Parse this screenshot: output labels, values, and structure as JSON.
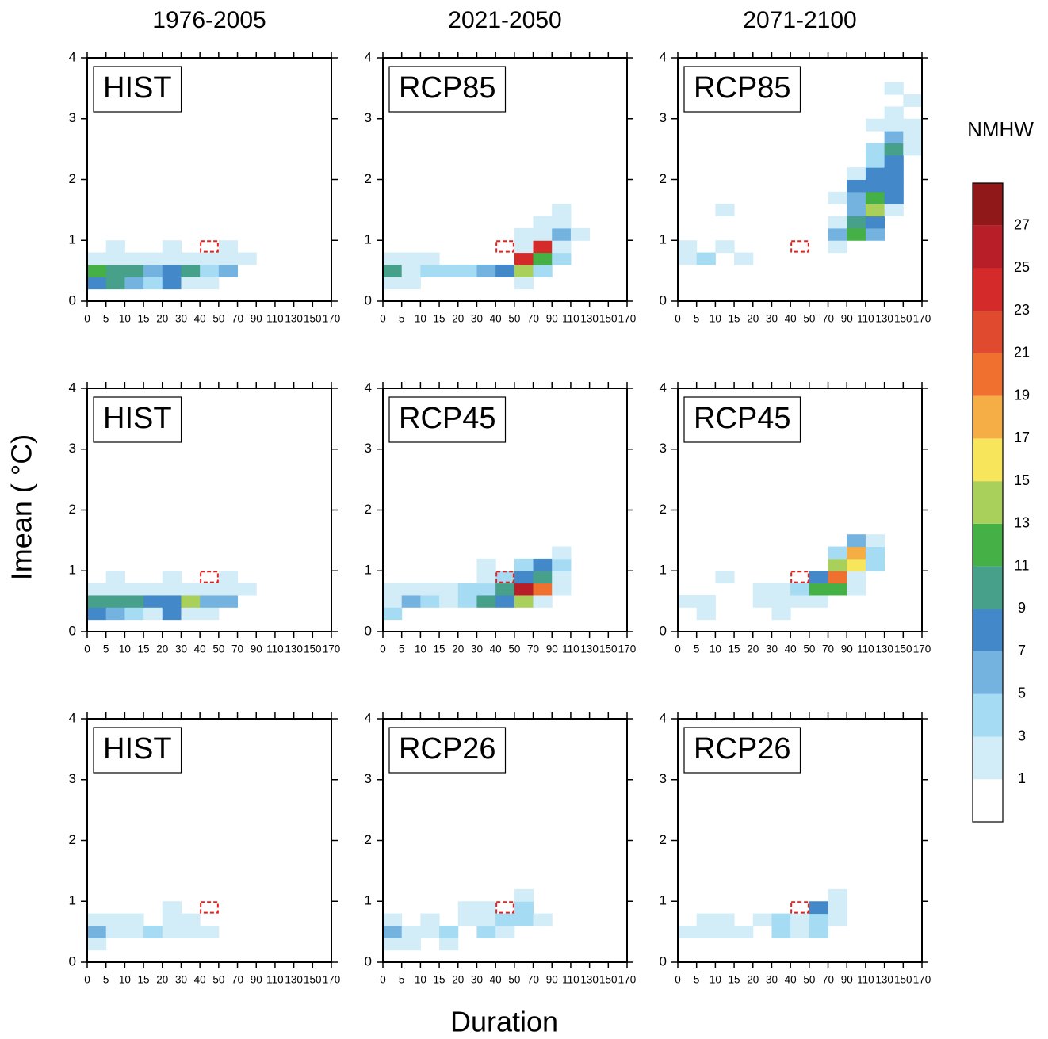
{
  "column_titles": [
    "1976-2005",
    "2021-2050",
    "2071-2100"
  ],
  "ylabel": "Imean ( °C)",
  "xlabel": "Duration",
  "colorbar": {
    "title": "NMHW",
    "levels": [
      1,
      3,
      5,
      7,
      9,
      11,
      13,
      15,
      17,
      19,
      21,
      23,
      25,
      27
    ],
    "colors": [
      "#ffffff",
      "#d2ecf8",
      "#a5dcf4",
      "#74b3e0",
      "#4388c8",
      "#46a08a",
      "#45b045",
      "#a9d05a",
      "#f7e55c",
      "#f5ad45",
      "#f07030",
      "#e04b30",
      "#d42a2a",
      "#b71e27",
      "#901818"
    ]
  },
  "chart_data": [
    {
      "type": "heatmap",
      "label": "HIST",
      "xticks": [
        0,
        5,
        10,
        15,
        20,
        30,
        40,
        50,
        70,
        90,
        110,
        130,
        150,
        170
      ],
      "ylim": [
        0,
        4
      ],
      "yticks": [
        0,
        1,
        2,
        3,
        4
      ],
      "ystep": 0.2,
      "marked_box": {
        "x": [
          40,
          50
        ],
        "y": [
          0.8,
          1
        ]
      },
      "cells": [
        [
          0,
          0.2,
          8
        ],
        [
          5,
          0.2,
          10
        ],
        [
          10,
          0.2,
          6
        ],
        [
          15,
          0.2,
          4
        ],
        [
          20,
          0.2,
          8
        ],
        [
          30,
          0.2,
          2
        ],
        [
          40,
          0.2,
          2
        ],
        [
          0,
          0.4,
          12
        ],
        [
          5,
          0.4,
          10
        ],
        [
          10,
          0.4,
          10
        ],
        [
          15,
          0.4,
          6
        ],
        [
          20,
          0.4,
          8
        ],
        [
          30,
          0.4,
          10
        ],
        [
          40,
          0.4,
          4
        ],
        [
          50,
          0.4,
          6
        ],
        [
          0,
          0.6,
          2
        ],
        [
          5,
          0.6,
          2
        ],
        [
          10,
          0.6,
          2
        ],
        [
          15,
          0.6,
          2
        ],
        [
          20,
          0.6,
          2
        ],
        [
          30,
          0.6,
          2
        ],
        [
          40,
          0.6,
          2
        ],
        [
          50,
          0.6,
          2
        ],
        [
          70,
          0.6,
          2
        ],
        [
          5,
          0.8,
          2
        ],
        [
          20,
          0.8,
          2
        ],
        [
          50,
          0.8,
          2
        ]
      ]
    },
    {
      "type": "heatmap",
      "label": "RCP85",
      "xticks": [
        0,
        5,
        10,
        15,
        20,
        30,
        40,
        50,
        70,
        90,
        110,
        130,
        150,
        170
      ],
      "ylim": [
        0,
        4
      ],
      "yticks": [
        0,
        1,
        2,
        3,
        4
      ],
      "ystep": 0.2,
      "marked_box": {
        "x": [
          40,
          50
        ],
        "y": [
          0.8,
          1
        ]
      },
      "cells": [
        [
          0,
          0.2,
          2
        ],
        [
          5,
          0.2,
          2
        ],
        [
          50,
          0.2,
          2
        ],
        [
          0,
          0.4,
          10
        ],
        [
          5,
          0.4,
          2
        ],
        [
          10,
          0.4,
          4
        ],
        [
          15,
          0.4,
          4
        ],
        [
          20,
          0.4,
          4
        ],
        [
          30,
          0.4,
          6
        ],
        [
          40,
          0.4,
          8
        ],
        [
          50,
          0.4,
          14
        ],
        [
          70,
          0.4,
          4
        ],
        [
          0,
          0.6,
          2
        ],
        [
          5,
          0.6,
          2
        ],
        [
          10,
          0.6,
          2
        ],
        [
          50,
          0.6,
          24
        ],
        [
          70,
          0.6,
          12
        ],
        [
          90,
          0.6,
          4
        ],
        [
          50,
          0.8,
          2
        ],
        [
          70,
          0.8,
          24
        ],
        [
          90,
          0.8,
          2
        ],
        [
          50,
          1,
          2
        ],
        [
          70,
          1,
          2
        ],
        [
          90,
          1,
          6
        ],
        [
          110,
          1,
          2
        ],
        [
          70,
          1.2,
          2
        ],
        [
          90,
          1.2,
          2
        ],
        [
          90,
          1.4,
          2
        ]
      ]
    },
    {
      "type": "heatmap",
      "label": "RCP85",
      "xticks": [
        0,
        5,
        10,
        15,
        20,
        30,
        40,
        50,
        70,
        90,
        110,
        130,
        150,
        170
      ],
      "ylim": [
        0,
        4
      ],
      "yticks": [
        0,
        1,
        2,
        3,
        4
      ],
      "ystep": 0.2,
      "marked_box": {
        "x": [
          40,
          50
        ],
        "y": [
          0.8,
          1
        ]
      },
      "cells": [
        [
          0,
          0.6,
          2
        ],
        [
          5,
          0.6,
          4
        ],
        [
          15,
          0.6,
          2
        ],
        [
          0,
          0.8,
          2
        ],
        [
          10,
          0.8,
          2
        ],
        [
          70,
          0.8,
          2
        ],
        [
          10,
          1.4,
          2
        ],
        [
          70,
          1,
          6
        ],
        [
          70,
          1.2,
          2
        ],
        [
          70,
          1.6,
          2
        ],
        [
          90,
          1,
          12
        ],
        [
          90,
          1.2,
          10
        ],
        [
          90,
          1.4,
          6
        ],
        [
          90,
          1.6,
          6
        ],
        [
          90,
          1.8,
          8
        ],
        [
          90,
          2,
          2
        ],
        [
          110,
          1,
          6
        ],
        [
          110,
          1.2,
          8
        ],
        [
          110,
          1.4,
          14
        ],
        [
          110,
          1.6,
          12
        ],
        [
          110,
          1.8,
          8
        ],
        [
          110,
          2,
          8
        ],
        [
          110,
          2.2,
          4
        ],
        [
          110,
          2.4,
          4
        ],
        [
          110,
          2.8,
          2
        ],
        [
          130,
          1.4,
          2
        ],
        [
          130,
          1.6,
          8
        ],
        [
          130,
          1.8,
          8
        ],
        [
          130,
          2,
          8
        ],
        [
          130,
          2.2,
          8
        ],
        [
          130,
          2.4,
          10
        ],
        [
          130,
          2.6,
          6
        ],
        [
          130,
          2.8,
          2
        ],
        [
          130,
          3,
          2
        ],
        [
          130,
          3.4,
          2
        ],
        [
          150,
          2.4,
          2
        ],
        [
          150,
          2.6,
          2
        ],
        [
          150,
          2.8,
          2
        ],
        [
          150,
          3.2,
          2
        ]
      ]
    },
    {
      "type": "heatmap",
      "label": "HIST",
      "xticks": [
        0,
        5,
        10,
        15,
        20,
        30,
        40,
        50,
        70,
        90,
        110,
        130,
        150,
        170
      ],
      "ylim": [
        0,
        4
      ],
      "yticks": [
        0,
        1,
        2,
        3,
        4
      ],
      "ystep": 0.2,
      "marked_box": {
        "x": [
          40,
          50
        ],
        "y": [
          0.8,
          1
        ]
      },
      "cells": [
        [
          0,
          0.2,
          8
        ],
        [
          5,
          0.2,
          6
        ],
        [
          10,
          0.2,
          4
        ],
        [
          15,
          0.2,
          2
        ],
        [
          20,
          0.2,
          8
        ],
        [
          30,
          0.2,
          2
        ],
        [
          40,
          0.2,
          2
        ],
        [
          0,
          0.4,
          10
        ],
        [
          5,
          0.4,
          10
        ],
        [
          10,
          0.4,
          10
        ],
        [
          15,
          0.4,
          8
        ],
        [
          20,
          0.4,
          8
        ],
        [
          30,
          0.4,
          14
        ],
        [
          40,
          0.4,
          6
        ],
        [
          50,
          0.4,
          6
        ],
        [
          0,
          0.6,
          2
        ],
        [
          5,
          0.6,
          2
        ],
        [
          10,
          0.6,
          2
        ],
        [
          15,
          0.6,
          2
        ],
        [
          20,
          0.6,
          2
        ],
        [
          30,
          0.6,
          2
        ],
        [
          40,
          0.6,
          2
        ],
        [
          50,
          0.6,
          2
        ],
        [
          70,
          0.6,
          2
        ],
        [
          5,
          0.8,
          2
        ],
        [
          20,
          0.8,
          2
        ],
        [
          50,
          0.8,
          2
        ]
      ]
    },
    {
      "type": "heatmap",
      "label": "RCP45",
      "xticks": [
        0,
        5,
        10,
        15,
        20,
        30,
        40,
        50,
        70,
        90,
        110,
        130,
        150,
        170
      ],
      "ylim": [
        0,
        4
      ],
      "yticks": [
        0,
        1,
        2,
        3,
        4
      ],
      "ystep": 0.2,
      "marked_box": {
        "x": [
          40,
          50
        ],
        "y": [
          0.8,
          1
        ]
      },
      "cells": [
        [
          0,
          0.2,
          4
        ],
        [
          0,
          0.4,
          2
        ],
        [
          5,
          0.4,
          6
        ],
        [
          10,
          0.4,
          4
        ],
        [
          15,
          0.4,
          2
        ],
        [
          20,
          0.4,
          4
        ],
        [
          30,
          0.4,
          10
        ],
        [
          40,
          0.4,
          8
        ],
        [
          50,
          0.4,
          14
        ],
        [
          70,
          0.4,
          2
        ],
        [
          0,
          0.6,
          2
        ],
        [
          5,
          0.6,
          2
        ],
        [
          10,
          0.6,
          2
        ],
        [
          15,
          0.6,
          2
        ],
        [
          20,
          0.6,
          4
        ],
        [
          30,
          0.6,
          4
        ],
        [
          40,
          0.6,
          10
        ],
        [
          50,
          0.6,
          26
        ],
        [
          70,
          0.6,
          20
        ],
        [
          90,
          0.6,
          2
        ],
        [
          30,
          0.8,
          2
        ],
        [
          40,
          0.8,
          4
        ],
        [
          50,
          0.8,
          8
        ],
        [
          70,
          0.8,
          10
        ],
        [
          90,
          0.8,
          2
        ],
        [
          30,
          1,
          2
        ],
        [
          50,
          1,
          4
        ],
        [
          70,
          1,
          8
        ],
        [
          90,
          1,
          4
        ],
        [
          90,
          1.2,
          2
        ]
      ]
    },
    {
      "type": "heatmap",
      "label": "RCP45",
      "xticks": [
        0,
        5,
        10,
        15,
        20,
        30,
        40,
        50,
        70,
        90,
        110,
        130,
        150,
        170
      ],
      "ylim": [
        0,
        4
      ],
      "yticks": [
        0,
        1,
        2,
        3,
        4
      ],
      "ystep": 0.2,
      "marked_box": {
        "x": [
          40,
          50
        ],
        "y": [
          0.8,
          1
        ]
      },
      "cells": [
        [
          5,
          0.2,
          2
        ],
        [
          30,
          0.2,
          2
        ],
        [
          0,
          0.4,
          2
        ],
        [
          5,
          0.4,
          2
        ],
        [
          20,
          0.4,
          2
        ],
        [
          30,
          0.4,
          2
        ],
        [
          40,
          0.4,
          2
        ],
        [
          50,
          0.4,
          2
        ],
        [
          20,
          0.6,
          2
        ],
        [
          30,
          0.6,
          2
        ],
        [
          40,
          0.6,
          4
        ],
        [
          50,
          0.6,
          12
        ],
        [
          70,
          0.6,
          12
        ],
        [
          90,
          0.6,
          2
        ],
        [
          10,
          0.8,
          2
        ],
        [
          50,
          0.8,
          8
        ],
        [
          70,
          0.8,
          20
        ],
        [
          90,
          0.8,
          2
        ],
        [
          70,
          1,
          14
        ],
        [
          90,
          1,
          16
        ],
        [
          110,
          1,
          4
        ],
        [
          70,
          1.2,
          4
        ],
        [
          90,
          1.2,
          18
        ],
        [
          110,
          1.2,
          4
        ],
        [
          90,
          1.4,
          6
        ],
        [
          110,
          1.4,
          2
        ]
      ]
    },
    {
      "type": "heatmap",
      "label": "HIST",
      "xticks": [
        0,
        5,
        10,
        15,
        20,
        30,
        40,
        50,
        70,
        90,
        110,
        130,
        150,
        170
      ],
      "ylim": [
        0,
        4
      ],
      "yticks": [
        0,
        1,
        2,
        3,
        4
      ],
      "ystep": 0.2,
      "marked_box": {
        "x": [
          40,
          50
        ],
        "y": [
          0.8,
          1
        ]
      },
      "cells": [
        [
          0,
          0.2,
          2
        ],
        [
          0,
          0.4,
          6
        ],
        [
          5,
          0.4,
          2
        ],
        [
          10,
          0.4,
          2
        ],
        [
          15,
          0.4,
          4
        ],
        [
          20,
          0.4,
          2
        ],
        [
          30,
          0.4,
          2
        ],
        [
          40,
          0.4,
          2
        ],
        [
          0,
          0.6,
          2
        ],
        [
          5,
          0.6,
          2
        ],
        [
          10,
          0.6,
          2
        ],
        [
          20,
          0.6,
          2
        ],
        [
          30,
          0.6,
          2
        ],
        [
          20,
          0.8,
          2
        ]
      ]
    },
    {
      "type": "heatmap",
      "label": "RCP26",
      "xticks": [
        0,
        5,
        10,
        15,
        20,
        30,
        40,
        50,
        70,
        90,
        110,
        130,
        150,
        170
      ],
      "ylim": [
        0,
        4
      ],
      "yticks": [
        0,
        1,
        2,
        3,
        4
      ],
      "ystep": 0.2,
      "marked_box": {
        "x": [
          40,
          50
        ],
        "y": [
          0.8,
          1
        ]
      },
      "cells": [
        [
          0,
          0.2,
          2
        ],
        [
          5,
          0.2,
          2
        ],
        [
          15,
          0.2,
          2
        ],
        [
          0,
          0.4,
          6
        ],
        [
          5,
          0.4,
          2
        ],
        [
          10,
          0.4,
          2
        ],
        [
          15,
          0.4,
          4
        ],
        [
          30,
          0.4,
          4
        ],
        [
          40,
          0.4,
          2
        ],
        [
          0,
          0.6,
          2
        ],
        [
          10,
          0.6,
          2
        ],
        [
          20,
          0.6,
          2
        ],
        [
          30,
          0.6,
          2
        ],
        [
          40,
          0.6,
          4
        ],
        [
          50,
          0.6,
          4
        ],
        [
          70,
          0.6,
          2
        ],
        [
          20,
          0.8,
          2
        ],
        [
          30,
          0.8,
          2
        ],
        [
          50,
          0.8,
          4
        ],
        [
          50,
          1,
          2
        ]
      ]
    },
    {
      "type": "heatmap",
      "label": "RCP26",
      "xticks": [
        0,
        5,
        10,
        15,
        20,
        30,
        40,
        50,
        70,
        90,
        110,
        130,
        150,
        170
      ],
      "ylim": [
        0,
        4
      ],
      "yticks": [
        0,
        1,
        2,
        3,
        4
      ],
      "ystep": 0.2,
      "marked_box": {
        "x": [
          40,
          50
        ],
        "y": [
          0.8,
          1
        ]
      },
      "cells": [
        [
          0,
          0.4,
          2
        ],
        [
          5,
          0.4,
          2
        ],
        [
          10,
          0.4,
          2
        ],
        [
          15,
          0.4,
          2
        ],
        [
          30,
          0.4,
          4
        ],
        [
          40,
          0.4,
          2
        ],
        [
          50,
          0.4,
          4
        ],
        [
          5,
          0.6,
          2
        ],
        [
          10,
          0.6,
          2
        ],
        [
          20,
          0.6,
          2
        ],
        [
          30,
          0.6,
          4
        ],
        [
          40,
          0.6,
          2
        ],
        [
          50,
          0.6,
          4
        ],
        [
          70,
          0.6,
          2
        ],
        [
          50,
          0.8,
          8
        ],
        [
          70,
          0.8,
          2
        ],
        [
          70,
          1,
          2
        ]
      ]
    }
  ]
}
